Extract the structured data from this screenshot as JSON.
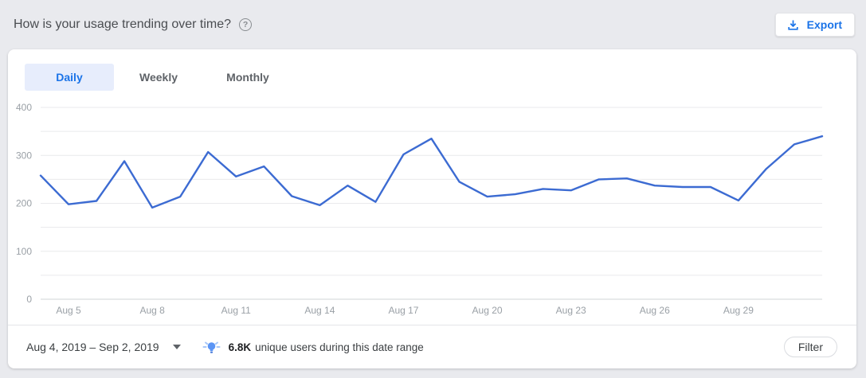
{
  "header": {
    "title": "How is your usage trending over time?",
    "export_button": "Export"
  },
  "tabs": [
    {
      "label": "Daily",
      "selected": true
    },
    {
      "label": "Weekly",
      "selected": false
    },
    {
      "label": "Monthly",
      "selected": false
    }
  ],
  "chart_data": {
    "type": "line",
    "title": "",
    "x": [
      "Aug 4",
      "Aug 5",
      "Aug 6",
      "Aug 7",
      "Aug 8",
      "Aug 9",
      "Aug 10",
      "Aug 11",
      "Aug 12",
      "Aug 13",
      "Aug 14",
      "Aug 15",
      "Aug 16",
      "Aug 17",
      "Aug 18",
      "Aug 19",
      "Aug 20",
      "Aug 21",
      "Aug 22",
      "Aug 23",
      "Aug 24",
      "Aug 25",
      "Aug 26",
      "Aug 27",
      "Aug 28",
      "Aug 29",
      "Aug 30",
      "Aug 31",
      "Sep 1"
    ],
    "values": [
      258,
      198,
      205,
      288,
      191,
      214,
      307,
      256,
      277,
      215,
      196,
      237,
      203,
      302,
      335,
      245,
      214,
      219,
      230,
      227,
      250,
      252,
      237,
      234,
      234,
      206,
      272,
      323,
      340
    ],
    "x_tick_labels": [
      "Aug 5",
      "Aug 8",
      "Aug 11",
      "Aug 14",
      "Aug 17",
      "Aug 20",
      "Aug 23",
      "Aug 26",
      "Aug 29"
    ],
    "xlabel": "",
    "ylabel": "",
    "ylim": [
      0,
      400
    ],
    "y_ticks": [
      0,
      100,
      200,
      300,
      400
    ],
    "gridline_step": 50,
    "grid": true,
    "legend_position": "none",
    "line_color": "#3c6bd2"
  },
  "footer": {
    "date_range": "Aug 4, 2019 – Sep 2, 2019",
    "insight_value": "6.8K",
    "insight_text": "unique users during this date range",
    "filter_button": "Filter"
  },
  "icons": {
    "export": "download-icon",
    "help": "help-circle-icon",
    "help_glyph": "?",
    "date_caret": "caret-down-icon",
    "insight": "lightbulb-icon"
  },
  "colors": {
    "accent_blue": "#1a73e8",
    "line_blue": "#3c6bd2",
    "selected_tab_bg": "#e7edfc",
    "axis_label_gray": "#9aa0a6",
    "page_background": "#e9eaee"
  }
}
